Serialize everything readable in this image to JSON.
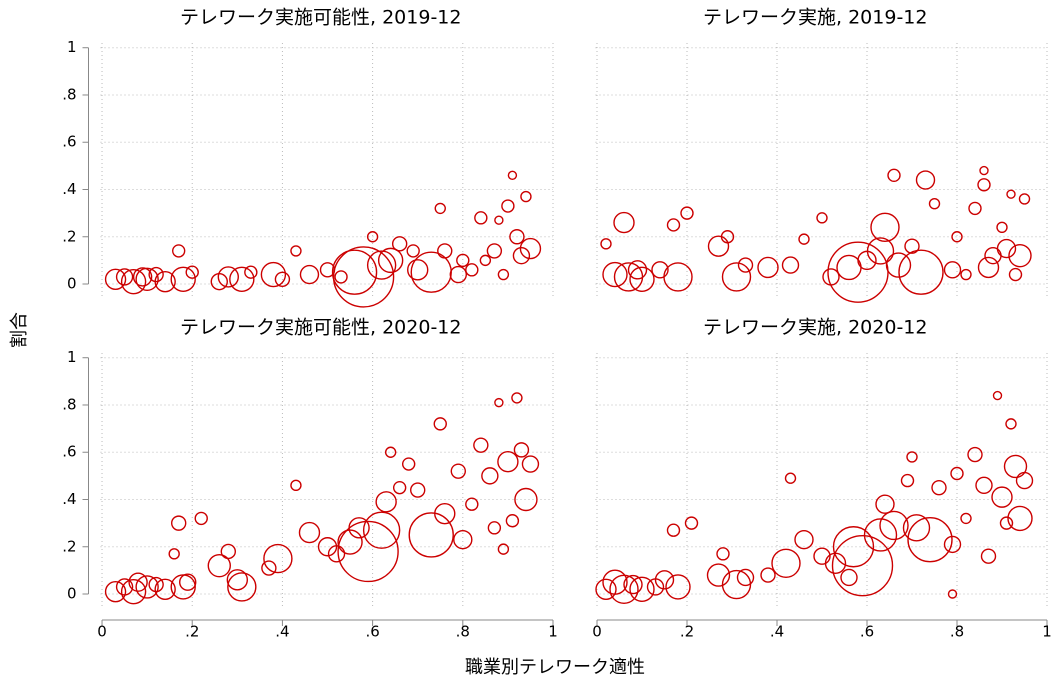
{
  "xlabel": "職業別テレワーク適性",
  "ylabel": "割合",
  "chart_data": [
    {
      "type": "scatter",
      "title": "テレワーク実施可能性, 2019-12",
      "color": "#cc0000",
      "grid": true,
      "xlim": [
        -0.03,
        1
      ],
      "ylim": [
        -0.11,
        1.02
      ],
      "xticks": [
        0,
        0.2,
        0.4,
        0.6,
        0.8,
        1
      ],
      "yticks": [
        0,
        {
          "value": 0.2,
          "label": ".2"
        },
        {
          "value": 0.4,
          "label": ".4"
        },
        {
          "value": 0.6,
          "label": ".6"
        },
        {
          "value": 0.8,
          "label": ".8"
        },
        1
      ],
      "x": [
        0.03,
        0.05,
        0.07,
        0.09,
        0.1,
        0.12,
        0.14,
        0.17,
        0.18,
        0.2,
        0.26,
        0.28,
        0.31,
        0.33,
        0.38,
        0.4,
        0.43,
        0.46,
        0.5,
        0.53,
        0.56,
        0.58,
        0.6,
        0.62,
        0.64,
        0.66,
        0.69,
        0.7,
        0.73,
        0.75,
        0.76,
        0.79,
        0.8,
        0.84,
        0.85,
        0.87,
        0.89,
        0.9,
        0.91,
        0.92,
        0.93,
        0.94,
        0.95,
        0.88,
        0.82
      ],
      "y": [
        0.02,
        0.03,
        0.01,
        0.03,
        0.02,
        0.04,
        0.01,
        0.14,
        0.02,
        0.05,
        0.01,
        0.03,
        0.02,
        0.05,
        0.04,
        0.02,
        0.14,
        0.04,
        0.06,
        0.03,
        0.05,
        0.03,
        0.2,
        0.08,
        0.1,
        0.17,
        0.14,
        0.06,
        0.05,
        0.32,
        0.14,
        0.04,
        0.1,
        0.28,
        0.1,
        0.14,
        0.04,
        0.33,
        0.46,
        0.2,
        0.12,
        0.37,
        0.15,
        0.27,
        0.06
      ],
      "sizes": [
        10,
        8,
        12,
        9,
        11,
        7,
        10,
        6,
        12,
        6,
        8,
        10,
        12,
        6,
        12,
        7,
        5,
        9,
        7,
        6,
        22,
        30,
        5,
        14,
        12,
        7,
        6,
        10,
        20,
        5,
        7,
        8,
        6,
        6,
        5,
        7,
        5,
        6,
        4,
        7,
        8,
        5,
        10,
        4,
        6
      ]
    },
    {
      "type": "scatter",
      "title": "テレワーク実施, 2019-12",
      "color": "#cc0000",
      "grid": true,
      "xlim": [
        -0.03,
        1
      ],
      "ylim": [
        -0.11,
        1.02
      ],
      "xticks": [
        0,
        0.2,
        0.4,
        0.6,
        0.8,
        1
      ],
      "yticks": [
        0,
        0.2,
        0.4,
        0.6,
        0.8,
        1
      ],
      "x": [
        0.02,
        0.04,
        0.06,
        0.07,
        0.09,
        0.1,
        0.14,
        0.17,
        0.18,
        0.2,
        0.27,
        0.29,
        0.31,
        0.33,
        0.38,
        0.43,
        0.46,
        0.5,
        0.52,
        0.56,
        0.58,
        0.6,
        0.63,
        0.64,
        0.66,
        0.67,
        0.7,
        0.72,
        0.73,
        0.75,
        0.79,
        0.8,
        0.84,
        0.86,
        0.87,
        0.88,
        0.9,
        0.91,
        0.92,
        0.93,
        0.94,
        0.95,
        0.86,
        0.82
      ],
      "y": [
        0.17,
        0.04,
        0.26,
        0.03,
        0.06,
        0.02,
        0.06,
        0.25,
        0.03,
        0.3,
        0.16,
        0.2,
        0.03,
        0.08,
        0.07,
        0.08,
        0.19,
        0.28,
        0.03,
        0.07,
        0.05,
        0.1,
        0.14,
        0.24,
        0.46,
        0.08,
        0.16,
        0.05,
        0.44,
        0.34,
        0.06,
        0.2,
        0.32,
        0.42,
        0.07,
        0.12,
        0.24,
        0.15,
        0.38,
        0.04,
        0.12,
        0.36,
        0.48,
        0.04
      ],
      "sizes": [
        5,
        12,
        10,
        14,
        9,
        12,
        8,
        6,
        14,
        6,
        10,
        6,
        14,
        7,
        10,
        8,
        5,
        5,
        8,
        12,
        30,
        9,
        13,
        14,
        6,
        12,
        7,
        22,
        9,
        5,
        8,
        5,
        6,
        6,
        10,
        8,
        5,
        9,
        4,
        6,
        11,
        5,
        4,
        5
      ]
    },
    {
      "type": "scatter",
      "title": "テレワーク実施可能性, 2020-12",
      "color": "#cc0000",
      "grid": true,
      "xlim": [
        -0.03,
        1
      ],
      "ylim": [
        -0.11,
        1.02
      ],
      "xticks": [
        0,
        {
          "value": 0.2,
          "label": ".2"
        },
        {
          "value": 0.4,
          "label": ".4"
        },
        {
          "value": 0.6,
          "label": ".6"
        },
        {
          "value": 0.8,
          "label": ".8"
        },
        1
      ],
      "yticks": [
        0,
        {
          "value": 0.2,
          "label": ".2"
        },
        {
          "value": 0.4,
          "label": ".4"
        },
        {
          "value": 0.6,
          "label": ".6"
        },
        {
          "value": 0.8,
          "label": ".8"
        },
        1
      ],
      "x": [
        0.03,
        0.05,
        0.07,
        0.08,
        0.1,
        0.12,
        0.14,
        0.16,
        0.17,
        0.18,
        0.19,
        0.22,
        0.26,
        0.28,
        0.3,
        0.31,
        0.37,
        0.39,
        0.43,
        0.46,
        0.5,
        0.52,
        0.55,
        0.57,
        0.59,
        0.62,
        0.63,
        0.64,
        0.66,
        0.68,
        0.7,
        0.73,
        0.75,
        0.76,
        0.79,
        0.8,
        0.82,
        0.84,
        0.86,
        0.87,
        0.88,
        0.9,
        0.91,
        0.92,
        0.93,
        0.94,
        0.95,
        0.89
      ],
      "y": [
        0.01,
        0.03,
        0.01,
        0.05,
        0.03,
        0.04,
        0.02,
        0.17,
        0.3,
        0.03,
        0.05,
        0.32,
        0.12,
        0.18,
        0.06,
        0.03,
        0.11,
        0.15,
        0.46,
        0.26,
        0.2,
        0.17,
        0.22,
        0.28,
        0.18,
        0.27,
        0.39,
        0.6,
        0.45,
        0.55,
        0.44,
        0.25,
        0.72,
        0.34,
        0.52,
        0.23,
        0.38,
        0.63,
        0.5,
        0.28,
        0.81,
        0.56,
        0.31,
        0.83,
        0.61,
        0.4,
        0.55,
        0.19
      ],
      "sizes": [
        10,
        8,
        12,
        9,
        11,
        7,
        10,
        5,
        7,
        12,
        8,
        6,
        11,
        7,
        10,
        14,
        7,
        14,
        5,
        10,
        9,
        8,
        12,
        10,
        30,
        18,
        10,
        5,
        6,
        6,
        7,
        22,
        6,
        10,
        7,
        9,
        6,
        7,
        8,
        6,
        4,
        10,
        6,
        5,
        7,
        11,
        8,
        5
      ]
    },
    {
      "type": "scatter",
      "title": "テレワーク実施, 2020-12",
      "color": "#cc0000",
      "grid": true,
      "xlim": [
        -0.03,
        1
      ],
      "ylim": [
        -0.11,
        1.02
      ],
      "xticks": [
        0,
        {
          "value": 0.2,
          "label": ".2"
        },
        {
          "value": 0.4,
          "label": ".4"
        },
        {
          "value": 0.6,
          "label": ".6"
        },
        {
          "value": 0.8,
          "label": ".8"
        },
        1
      ],
      "yticks": [
        0,
        0.2,
        0.4,
        0.6,
        0.8,
        1
      ],
      "x": [
        0.02,
        0.04,
        0.06,
        0.08,
        0.1,
        0.13,
        0.15,
        0.17,
        0.18,
        0.21,
        0.27,
        0.28,
        0.31,
        0.33,
        0.38,
        0.42,
        0.43,
        0.46,
        0.5,
        0.53,
        0.56,
        0.57,
        0.59,
        0.63,
        0.64,
        0.66,
        0.69,
        0.7,
        0.71,
        0.74,
        0.76,
        0.79,
        0.8,
        0.82,
        0.84,
        0.86,
        0.87,
        0.89,
        0.9,
        0.91,
        0.92,
        0.93,
        0.94,
        0.95,
        0.79
      ],
      "y": [
        0.02,
        0.05,
        0.02,
        0.04,
        0.02,
        0.03,
        0.06,
        0.27,
        0.03,
        0.3,
        0.08,
        0.17,
        0.04,
        0.07,
        0.08,
        0.13,
        0.49,
        0.23,
        0.16,
        0.13,
        0.07,
        0.2,
        0.12,
        0.25,
        0.38,
        0.29,
        0.48,
        0.58,
        0.28,
        0.23,
        0.45,
        0.21,
        0.51,
        0.32,
        0.59,
        0.46,
        0.16,
        0.84,
        0.41,
        0.3,
        0.72,
        0.54,
        0.32,
        0.48,
        0.0
      ],
      "sizes": [
        10,
        12,
        14,
        9,
        12,
        8,
        9,
        6,
        12,
        6,
        11,
        6,
        14,
        8,
        7,
        14,
        5,
        9,
        8,
        10,
        8,
        20,
        30,
        16,
        9,
        14,
        6,
        5,
        13,
        22,
        7,
        8,
        6,
        5,
        7,
        8,
        7,
        4,
        10,
        6,
        5,
        11,
        12,
        8,
        4
      ]
    }
  ]
}
